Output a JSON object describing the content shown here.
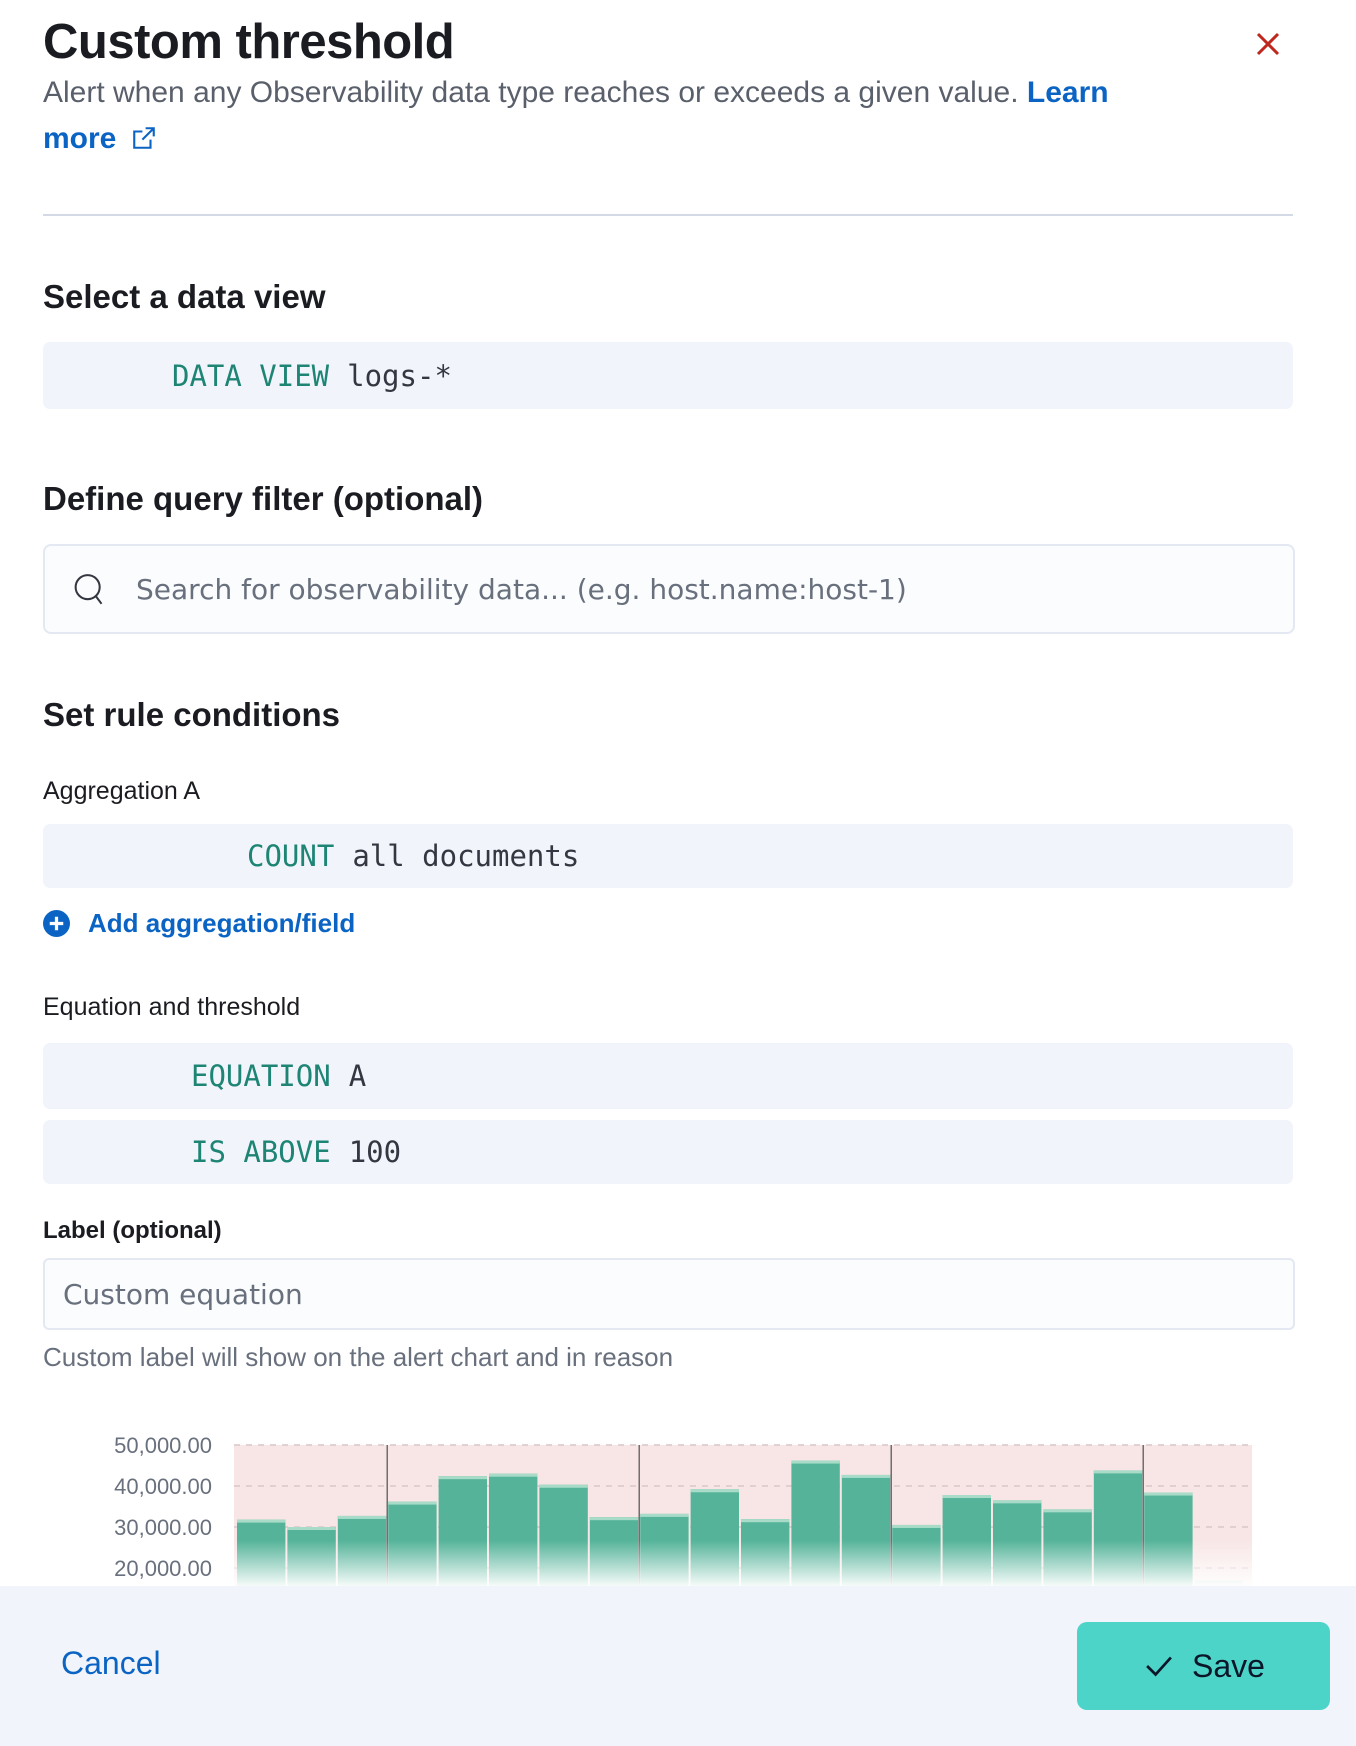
{
  "header": {
    "title": "Custom threshold",
    "subtitle": "Alert when any Observability data type reaches or exceeds a given value.",
    "learn_more_1": "Learn",
    "learn_more_2": "more",
    "close_icon": "close-icon",
    "close_color": "#bd271e"
  },
  "data_view": {
    "heading": "Select a data view",
    "keyword": "DATA VIEW",
    "value": "logs-*"
  },
  "query_filter": {
    "heading": "Define query filter (optional)",
    "placeholder": "Search for observability data... (e.g. host.name:host-1)",
    "value": ""
  },
  "rule_conditions": {
    "heading": "Set rule conditions",
    "aggregation_label": "Aggregation A",
    "aggregation_keyword": "COUNT",
    "aggregation_value": "all documents",
    "add_aggregation": "Add aggregation/field",
    "equation_label": "Equation and threshold",
    "equation_keyword": "EQUATION",
    "equation_value": "A",
    "threshold_keyword": "IS ABOVE",
    "threshold_value": "100",
    "custom_label_label": "Label (optional)",
    "custom_label_placeholder": "Custom equation",
    "custom_label_value": "",
    "custom_label_help": "Custom label will show on the alert chart and in reason"
  },
  "chart_data": {
    "type": "bar",
    "yticks": [
      "50,000.00",
      "40,000.00",
      "30,000.00",
      "20,000.00"
    ],
    "ylim_visible": [
      17000,
      50000
    ],
    "values": [
      31800,
      30000,
      32700,
      36200,
      42400,
      43000,
      40300,
      32400,
      33200,
      39200,
      31900,
      46200,
      42700,
      30500,
      37800,
      36500,
      34300,
      43800,
      38400,
      17000
    ],
    "threshold": 100,
    "threshold_fill": "#f8e6e6",
    "bar_color": "#54b399",
    "grid": true,
    "legend": "none"
  },
  "footer": {
    "cancel": "Cancel",
    "save": "Save",
    "save_color": "#4dd4c8"
  }
}
